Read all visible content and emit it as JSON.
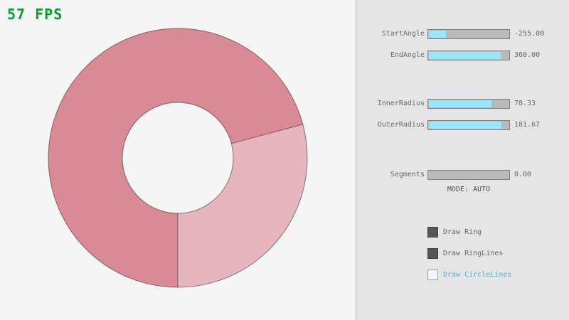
{
  "fps": {
    "text": "57 FPS",
    "color": "#009e2f"
  },
  "ring": {
    "params": {
      "start_angle": -255.0,
      "end_angle": 360.0,
      "inner_radius": 78.33,
      "outer_radius": 181.67,
      "segments": 0.0,
      "mode": "AUTO"
    },
    "colors": {
      "single": "#e6b5bd",
      "overlap": "#d98a95",
      "line": "rgba(0,0,0,0.45)"
    }
  },
  "panel": {
    "sliders": [
      {
        "label": "StartAngle",
        "value": "-255.00",
        "fill": 0.217
      },
      {
        "label": "EndAngle",
        "value": "360.00",
        "fill": 0.9
      },
      {
        "label": "InnerRadius",
        "value": "78.33",
        "fill": 0.783
      },
      {
        "label": "OuterRadius",
        "value": "181.67",
        "fill": 0.908
      },
      {
        "label": "Segments",
        "value": "0.00",
        "fill": 0.0
      }
    ],
    "mode_text": "MODE: AUTO",
    "checkboxes": [
      {
        "label": "Draw Ring",
        "checked": true
      },
      {
        "label": "Draw RingLines",
        "checked": true
      },
      {
        "label": "Draw CircleLines",
        "checked": false
      }
    ],
    "colors": {
      "slider_fill": "#97e8ff",
      "slider_track": "#b9b9b9",
      "checkbox_checked": "#575757",
      "focus_blue": "#5bb2d9",
      "text_gray": "#686868"
    }
  }
}
